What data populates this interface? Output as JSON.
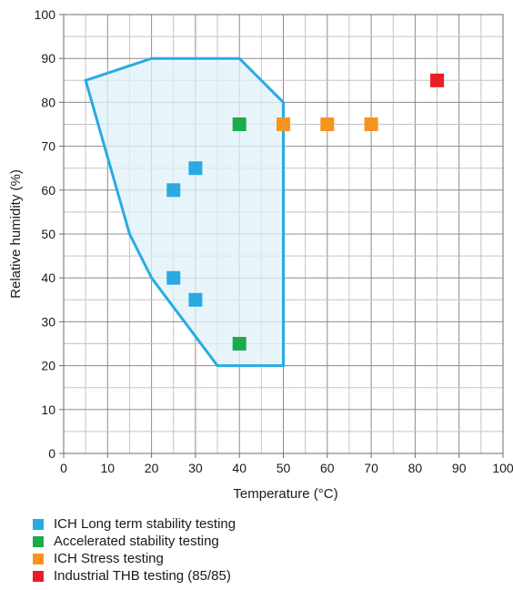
{
  "chart_data": {
    "type": "scatter",
    "title": "",
    "xlabel": "Temperature (°C)",
    "ylabel": "Relative humidity (%)",
    "xlim": [
      0,
      100
    ],
    "ylim": [
      0,
      100
    ],
    "x_ticks": [
      "0",
      "10",
      "20",
      "30",
      "40",
      "50",
      "60",
      "70",
      "80",
      "90",
      "100"
    ],
    "y_ticks": [
      "0",
      "10",
      "20",
      "30",
      "40",
      "50",
      "60",
      "70",
      "80",
      "90",
      "100"
    ],
    "grid": true,
    "minor_grid_step": 5,
    "legend_position": "bottom-left",
    "region": {
      "color": "#29abe2",
      "fill": "#dff1fa",
      "points": [
        [
          5,
          85
        ],
        [
          20,
          90
        ],
        [
          40,
          90
        ],
        [
          50,
          80
        ],
        [
          50,
          20
        ],
        [
          35,
          20
        ],
        [
          20,
          40
        ],
        [
          15,
          50
        ]
      ]
    },
    "series": [
      {
        "name": "ICH Long term stability testing",
        "color": "#29abe2",
        "points": [
          [
            25,
            60
          ],
          [
            30,
            65
          ],
          [
            25,
            40
          ],
          [
            30,
            35
          ]
        ]
      },
      {
        "name": "Accelerated stability testing",
        "color": "#1aab4b",
        "points": [
          [
            40,
            75
          ],
          [
            40,
            25
          ]
        ]
      },
      {
        "name": "ICH Stress testing",
        "color": "#f7941d",
        "points": [
          [
            50,
            75
          ],
          [
            60,
            75
          ],
          [
            70,
            75
          ]
        ]
      },
      {
        "name": "Industrial THB testing (85/85)",
        "color": "#ec1c24",
        "points": [
          [
            85,
            85
          ]
        ]
      }
    ]
  }
}
